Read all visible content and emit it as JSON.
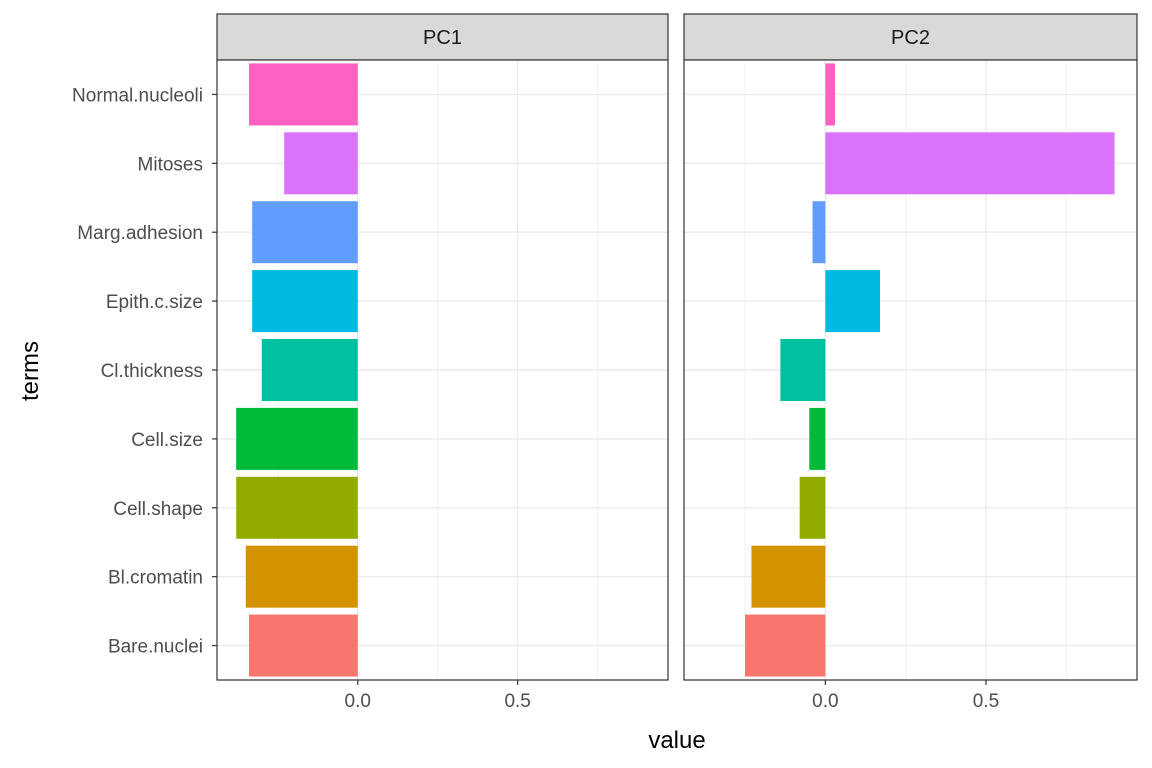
{
  "chart_data": {
    "type": "bar",
    "orientation": "horizontal",
    "facets": [
      "PC1",
      "PC2"
    ],
    "xlabel": "value",
    "ylabel": "terms",
    "x_ticks": [
      0.0,
      0.5
    ],
    "x_tick_labels": [
      "0.0",
      "0.5"
    ],
    "xlim": [
      -0.44,
      0.97
    ],
    "grid": true,
    "legend": "none",
    "categories": [
      "Bare.nuclei",
      "Bl.cromatin",
      "Cell.shape",
      "Cell.size",
      "Cl.thickness",
      "Epith.c.size",
      "Marg.adhesion",
      "Mitoses",
      "Normal.nucleoli"
    ],
    "colors": [
      "#F8766D",
      "#D39200",
      "#93AA00",
      "#00BA38",
      "#00C19F",
      "#00B9E3",
      "#619CFF",
      "#DB72FB",
      "#FF61C3"
    ],
    "series": [
      {
        "facet": "PC1",
        "values": [
          -0.34,
          -0.35,
          -0.38,
          -0.38,
          -0.3,
          -0.33,
          -0.33,
          -0.23,
          -0.34
        ]
      },
      {
        "facet": "PC2",
        "values": [
          -0.25,
          -0.23,
          -0.08,
          -0.05,
          -0.14,
          0.17,
          -0.04,
          0.9,
          0.03
        ]
      }
    ]
  }
}
